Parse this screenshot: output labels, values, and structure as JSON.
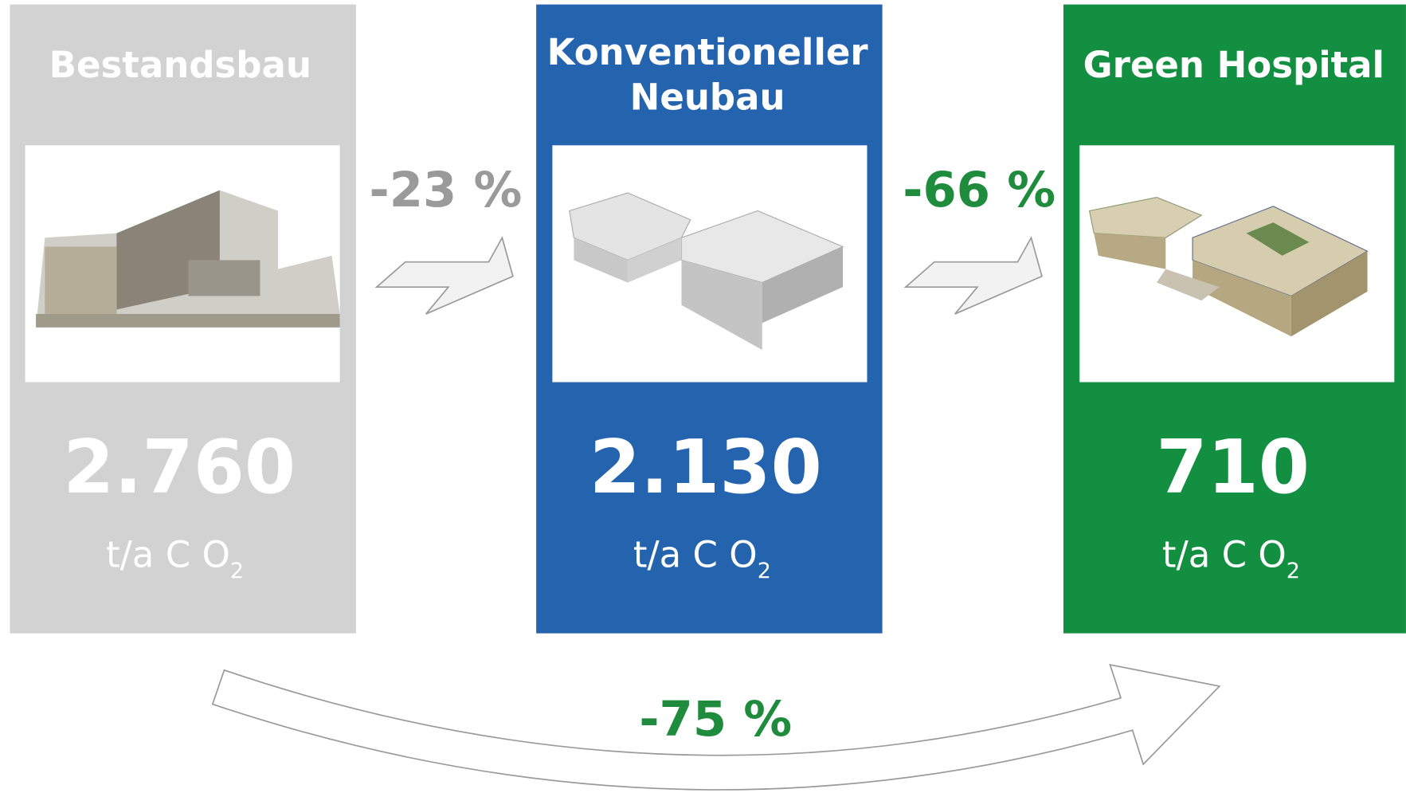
{
  "panels": [
    {
      "title": [
        "Bestandsbau"
      ],
      "value": "2.760",
      "unit": "t/a C O",
      "unit_sub": "2"
    },
    {
      "title": [
        "Konventioneller",
        "Neubau"
      ],
      "value": "2.130",
      "unit": "t/a C O",
      "unit_sub": "2"
    },
    {
      "title": [
        "Green Hospital"
      ],
      "value": "710",
      "unit": "t/a C O",
      "unit_sub": "2"
    }
  ],
  "reductions": [
    "-23 %",
    "-66 %",
    "-75 %"
  ]
}
